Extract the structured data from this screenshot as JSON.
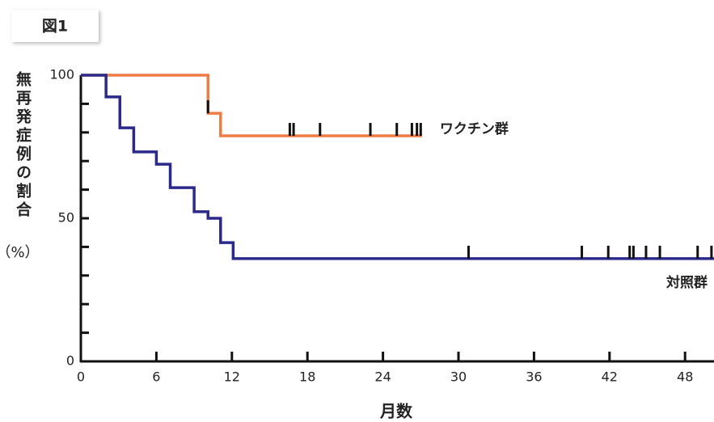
{
  "figure_label": "図1",
  "chart_data": {
    "type": "survival_step",
    "y_label": "無再発症例の割合",
    "y_unit": "（%）",
    "x_label": "月数",
    "xlim": [
      0,
      50.3
    ],
    "ylim": [
      0,
      100
    ],
    "xticks": [
      0,
      6,
      12,
      18,
      24,
      30,
      36,
      42,
      48
    ],
    "yticks": [
      0,
      50,
      100
    ],
    "yminor_ticks": [
      10,
      20,
      30,
      40,
      60,
      70,
      80,
      90
    ],
    "series": [
      {
        "name": "ワクチン群",
        "color": "#f07c45",
        "x": [
          0,
          10.1,
          11.1,
          27.1
        ],
        "values": [
          100,
          86.7,
          78.8,
          78.8
        ],
        "censor_x": [
          10.1,
          16.6,
          16.9,
          19.0,
          23.0,
          25.1,
          26.3,
          26.7,
          27.0
        ]
      },
      {
        "name": "対照群",
        "color": "#2b2a8a",
        "x": [
          0,
          2.0,
          3.1,
          4.2,
          6.0,
          7.1,
          9.0,
          10.1,
          11.1,
          12.1,
          50.3
        ],
        "values": [
          100,
          92.4,
          81.6,
          73.2,
          68.9,
          60.7,
          52.3,
          50,
          41.5,
          35.9,
          35.9
        ],
        "censor_x": [
          30.8,
          39.8,
          41.9,
          43.6,
          43.9,
          44.9,
          46.0,
          49.0,
          50.1
        ]
      }
    ]
  }
}
